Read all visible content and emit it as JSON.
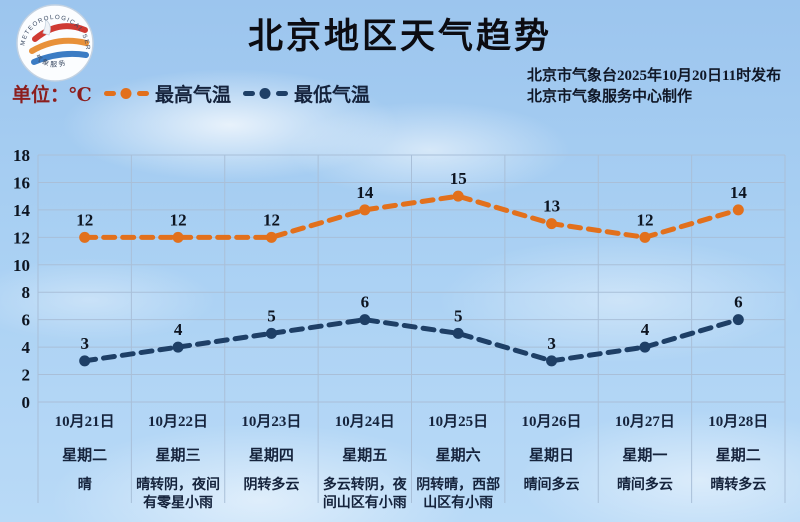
{
  "header": {
    "title": "北京地区天气趋势",
    "unit_label": "单位：℃",
    "publisher_line1": "北京市气象台2025年10月20日11时发布",
    "publisher_line2": "北京市气象服务中心制作",
    "logo": {
      "ring_text_top": "METEOROLOGICAL SERVICE",
      "ring_text_bottom": "气象服务"
    }
  },
  "colors": {
    "high_series": "#e2701c",
    "low_series": "#1e3f66",
    "grid": "#a9bfd8",
    "text_dark": "#0d1420",
    "unit_maroon": "#8c1e1e"
  },
  "chart_data": {
    "type": "line",
    "title": "北京地区天气趋势",
    "categories": [
      "10月21日",
      "10月22日",
      "10月23日",
      "10月24日",
      "10月25日",
      "10月26日",
      "10月27日",
      "10月28日"
    ],
    "weekdays": [
      "星期二",
      "星期三",
      "星期四",
      "星期五",
      "星期六",
      "星期日",
      "星期一",
      "星期二"
    ],
    "weather": [
      "晴",
      "晴转阴，夜间有零星小雨",
      "阴转多云",
      "多云转阴，夜间山区有小雨",
      "阴转晴，西部山区有小雨",
      "晴间多云",
      "晴间多云",
      "晴转多云"
    ],
    "series": [
      {
        "name": "最高气温",
        "color": "#e2701c",
        "values": [
          12,
          12,
          12,
          14,
          15,
          13,
          12,
          14
        ]
      },
      {
        "name": "最低气温",
        "color": "#1e3f66",
        "values": [
          3,
          4,
          5,
          6,
          5,
          3,
          4,
          6
        ]
      }
    ],
    "ylabel": "℃",
    "ylim": [
      0,
      18
    ],
    "ytick_step": 2,
    "grid": true,
    "legend_position": "top-left"
  }
}
